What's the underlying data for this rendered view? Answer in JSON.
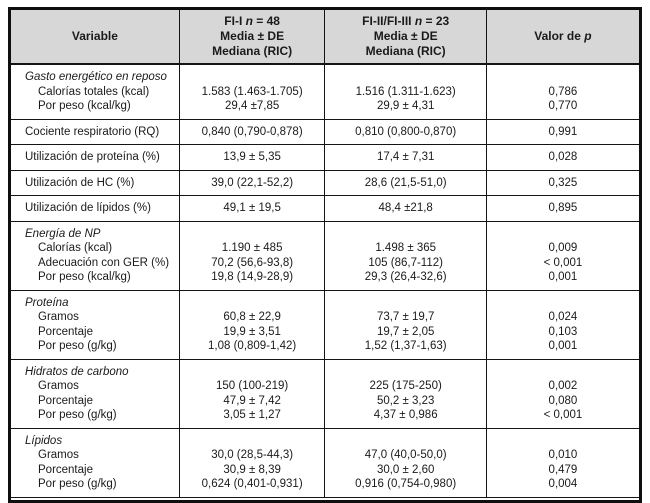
{
  "table": {
    "header": {
      "variable": "Variable",
      "group1": {
        "pre": "FI-I ",
        "n": "n",
        "post": " = 48",
        "line2": "Media ± DE",
        "line3": "Mediana (RIC)"
      },
      "group2": {
        "pre": "FI-II/FI-III ",
        "n": "n",
        "post": " = 23",
        "line2": "Media ± DE",
        "line3": "Mediana (RIC)"
      },
      "pvalue": {
        "pre": "Valor de ",
        "p": "p"
      }
    },
    "sections": [
      {
        "title": "Gasto energético en reposo",
        "rows": [
          {
            "label": "Calorías totales (kcal)",
            "fi1": "1.583 (1.463-1.705)",
            "fi23": "1.516 (1.311-1.623)",
            "p": "0,786"
          },
          {
            "label": "Por peso (kcal/kg)",
            "fi1": "29,4 ±7,85",
            "fi23": "29,9 ± 4,31",
            "p": "0,770"
          }
        ]
      },
      {
        "title": null,
        "rows": [
          {
            "label": "Cociente respiratorio (RQ)",
            "fi1": "0,840 (0,790-0,878)",
            "fi23": "0,810 (0,800-0,870)",
            "p": "0,991"
          }
        ]
      },
      {
        "title": null,
        "rows": [
          {
            "label": "Utilización de proteína (%)",
            "fi1": "13,9 ± 5,35",
            "fi23": "17,4 ± 7,31",
            "p": "0,028"
          }
        ]
      },
      {
        "title": null,
        "rows": [
          {
            "label": "Utilización de HC (%)",
            "fi1": "39,0 (22,1-52,2)",
            "fi23": "28,6 (21,5-51,0)",
            "p": "0,325"
          }
        ]
      },
      {
        "title": null,
        "rows": [
          {
            "label": "Utilización de lípidos (%)",
            "fi1": "49,1 ± 19,5",
            "fi23": "48,4 ±21,8",
            "p": "0,895"
          }
        ]
      },
      {
        "title": "Energía de NP",
        "rows": [
          {
            "label": "Calorías (kcal)",
            "fi1": "1.190 ± 485",
            "fi23": "1.498 ± 365",
            "p": "0,009"
          },
          {
            "label": "Adecuación con GER (%)",
            "fi1": "70,2 (56,6-93,8)",
            "fi23": "105 (86,7-112)",
            "p": "< 0,001"
          },
          {
            "label": "Por peso (kcal/kg)",
            "fi1": "19,8 (14,9-28,9)",
            "fi23": "29,3 (26,4-32,6)",
            "p": "0,001"
          }
        ]
      },
      {
        "title": "Proteína",
        "rows": [
          {
            "label": "Gramos",
            "fi1": "60,8 ± 22,9",
            "fi23": "73,7 ± 19,7",
            "p": "0,024"
          },
          {
            "label": "Porcentaje",
            "fi1": "19,9 ± 3,51",
            "fi23": "19,7 ± 2,05",
            "p": "0,103"
          },
          {
            "label": "Por peso (g/kg)",
            "fi1": "1,08 (0,809-1,42)",
            "fi23": "1,52 (1,37-1,63)",
            "p": "0,001"
          }
        ]
      },
      {
        "title": "Hidratos de carbono",
        "rows": [
          {
            "label": "Gramos",
            "fi1": "150 (100-219)",
            "fi23": "225 (175-250)",
            "p": "0,002"
          },
          {
            "label": "Porcentaje",
            "fi1": "47,9 ± 7,42",
            "fi23": "50,2 ± 3,23",
            "p": "0,080"
          },
          {
            "label": "Por peso (g/kg)",
            "fi1": "3,05 ± 1,27",
            "fi23": "4,37 ± 0,986",
            "p": "< 0,001"
          }
        ]
      },
      {
        "title": "Lípidos",
        "rows": [
          {
            "label": "Gramos",
            "fi1": "30,0 (28,5-44,3)",
            "fi23": "47,0 (40,0-50,0)",
            "p": "0,010"
          },
          {
            "label": "Porcentaje",
            "fi1": "30,9 ± 8,39",
            "fi23": "30,0 ± 2,60",
            "p": "0,479"
          },
          {
            "label": "Por peso (g/kg)",
            "fi1": "0,624 (0,401-0,931)",
            "fi23": "0,916 (0,754-0,980)",
            "p": "0,004"
          }
        ]
      }
    ],
    "colors": {
      "header_background": "#d7d7d7",
      "border": "#141414",
      "text": "#1a1a1a"
    }
  }
}
